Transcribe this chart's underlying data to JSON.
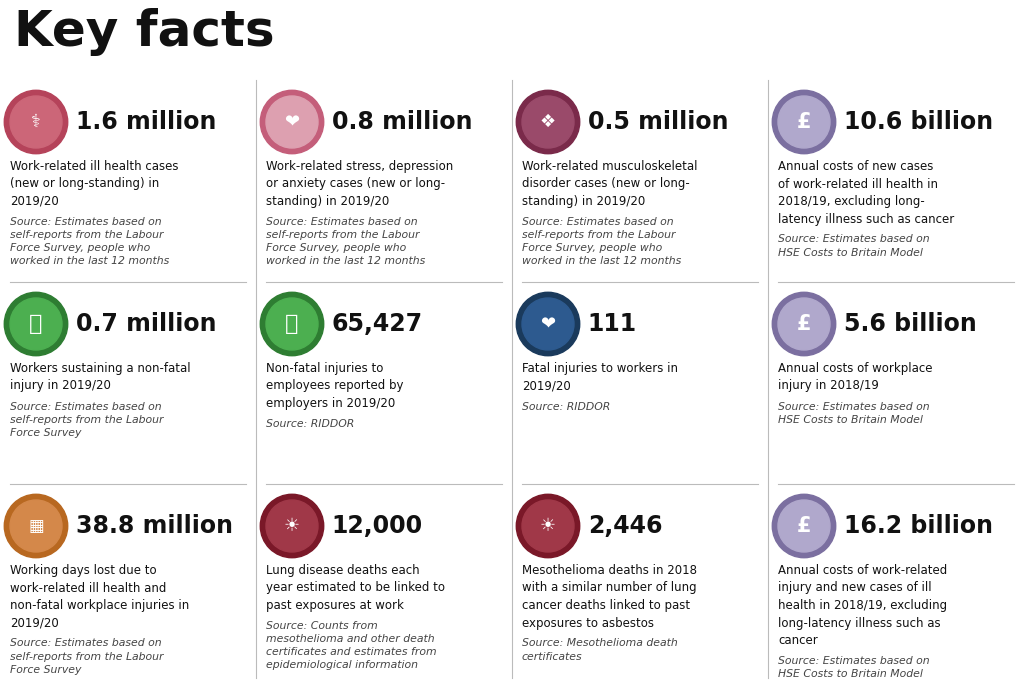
{
  "title": "Key facts",
  "bg": "#ffffff",
  "text_color": "#111111",
  "source_color": "#444444",
  "divider_color": "#bbbbbb",
  "title_fs": 36,
  "value_fs": 17,
  "desc_fs": 8.5,
  "src_fs": 7.8,
  "cells": [
    {
      "row": 0,
      "col": 0,
      "ring": "#b5435a",
      "fill": "#cc6678",
      "value": "1.6 million",
      "desc": "Work-related ill health cases\n(new or long-standing) in\n2019/20",
      "source": "Source: Estimates based on\nself-reports from the Labour\nForce Survey, people who\nworked in the last 12 months"
    },
    {
      "row": 0,
      "col": 1,
      "ring": "#c45e7a",
      "fill": "#dda0b0",
      "value": "0.8 million",
      "desc": "Work-related stress, depression\nor anxiety cases (new or long-\nstanding) in 2019/20",
      "source": "Source: Estimates based on\nself-reports from the Labour\nForce Survey, people who\nworked in the last 12 months"
    },
    {
      "row": 0,
      "col": 2,
      "ring": "#7a2a4a",
      "fill": "#9a4a6a",
      "value": "0.5 million",
      "desc": "Work-related musculoskeletal\ndisorder cases (new or long-\nstanding) in 2019/20",
      "source": "Source: Estimates based on\nself-reports from the Labour\nForce Survey, people who\nworked in the last 12 months"
    },
    {
      "row": 0,
      "col": 3,
      "ring": "#7b6fa0",
      "fill": "#b0a8cc",
      "value": "10.6 billion",
      "desc": "Annual costs of new cases\nof work-related ill health in\n2018/19, excluding long-\nlatency illness such as cancer",
      "source": "Source: Estimates based on\nHSE Costs to Britain Model"
    },
    {
      "row": 1,
      "col": 0,
      "ring": "#2e7d32",
      "fill": "#4caf50",
      "value": "0.7 million",
      "desc": "Workers sustaining a non-fatal\ninjury in 2019/20",
      "source": "Source: Estimates based on\nself-reports from the Labour\nForce Survey"
    },
    {
      "row": 1,
      "col": 1,
      "ring": "#2e7d32",
      "fill": "#4caf50",
      "value": "65,427",
      "desc": "Non-fatal injuries to\nemployees reported by\nemployers in 2019/20",
      "source": "Source: RIDDOR"
    },
    {
      "row": 1,
      "col": 2,
      "ring": "#1a3a5c",
      "fill": "#2d5a8f",
      "value": "111",
      "desc": "Fatal injuries to workers in\n2019/20",
      "source": "Source: RIDDOR"
    },
    {
      "row": 1,
      "col": 3,
      "ring": "#7b6fa0",
      "fill": "#b0a8cc",
      "value": "5.6 billion",
      "desc": "Annual costs of workplace\ninjury in 2018/19",
      "source": "Source: Estimates based on\nHSE Costs to Britain Model"
    },
    {
      "row": 2,
      "col": 0,
      "ring": "#b86820",
      "fill": "#d4884a",
      "value": "38.8 million",
      "desc": "Working days lost due to\nwork-related ill health and\nnon-fatal workplace injuries in\n2019/20",
      "source": "Source: Estimates based on\nself-reports from the Labour\nForce Survey"
    },
    {
      "row": 2,
      "col": 1,
      "ring": "#7a1828",
      "fill": "#a03848",
      "value": "12,000",
      "desc": "Lung disease deaths each\nyear estimated to be linked to\npast exposures at work",
      "source": "Source: Counts from\nmesothelioma and other death\ncertificates and estimates from\nepidemiological information"
    },
    {
      "row": 2,
      "col": 2,
      "ring": "#7a1828",
      "fill": "#a03848",
      "value": "2,446",
      "desc": "Mesothelioma deaths in 2018\nwith a similar number of lung\ncancer deaths linked to past\nexposures to asbestos",
      "source": "Source: Mesothelioma death\ncertificates"
    },
    {
      "row": 2,
      "col": 3,
      "ring": "#7b6fa0",
      "fill": "#b0a8cc",
      "value": "16.2 billion",
      "desc": "Annual costs of work-related\ninjury and new cases of ill\nhealth in 2018/19, excluding\nlong-latency illness such as\ncancer",
      "source": "Source: Estimates based on\nHSE Costs to Britain Model"
    }
  ]
}
